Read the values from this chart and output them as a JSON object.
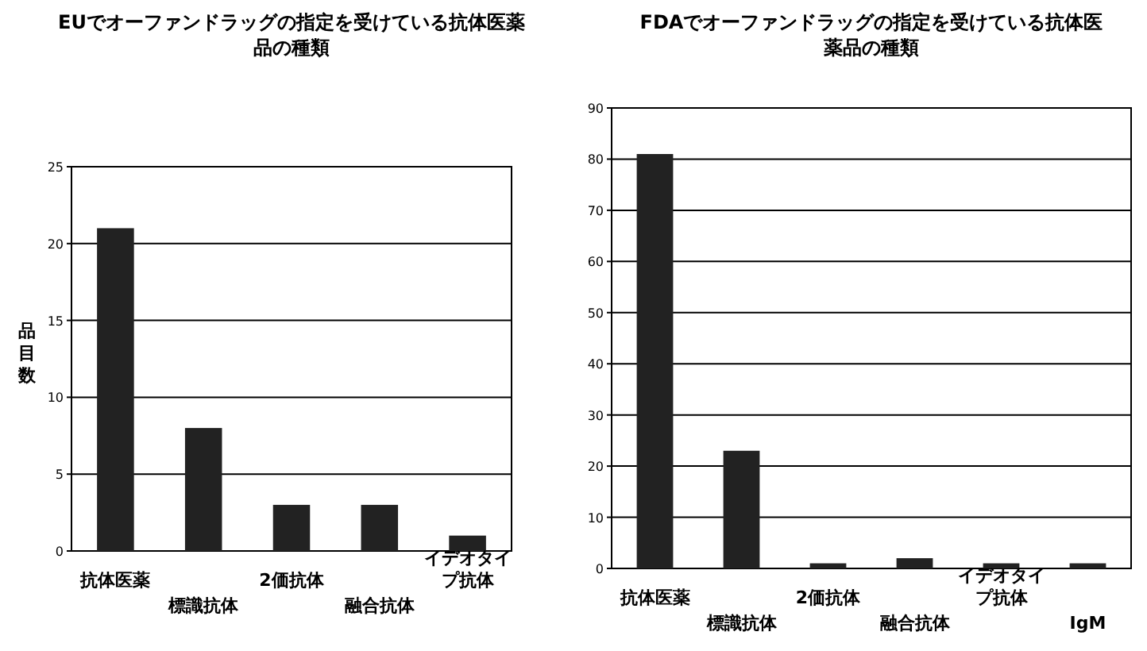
{
  "chart_data": [
    {
      "type": "bar",
      "title": "EUでオーファンドラッグの指定を受けている抗体医薬品の種類",
      "ylabel": "品目数",
      "categories": [
        "抗体医薬",
        "標識抗体",
        "2価抗体",
        "融合抗体",
        "イデオタイプ抗体"
      ],
      "values": [
        21,
        8,
        3,
        3,
        1
      ],
      "color": "#222222",
      "ylim": [
        0,
        25
      ],
      "yticks": [
        0,
        5,
        10,
        15,
        20,
        25
      ],
      "grid": "y"
    },
    {
      "type": "bar",
      "title": "FDAでオーファンドラッグの指定を受けている抗体医薬品の種類",
      "categories": [
        "抗体医薬",
        "標識抗体",
        "2価抗体",
        "融合抗体",
        "イデオタイプ抗体",
        "IgM"
      ],
      "values": [
        81,
        23,
        1,
        2,
        1,
        1
      ],
      "color": "#222222",
      "ylim": [
        0,
        90
      ],
      "yticks": [
        0,
        10,
        20,
        30,
        40,
        50,
        60,
        70,
        80,
        90
      ],
      "grid": "y"
    }
  ]
}
